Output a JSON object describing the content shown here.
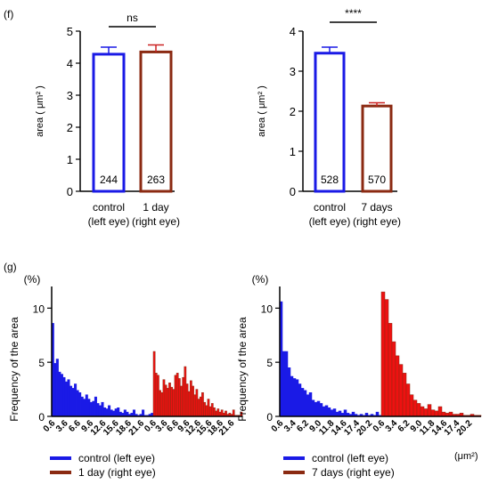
{
  "panels": {
    "f": "(f)",
    "g": "(g)"
  },
  "colors": {
    "control": "#1a1ae6",
    "treated_line": "#8b2a12",
    "treated_fill": "#ee1111",
    "errorbar_treated": "#cc2222"
  },
  "legend": {
    "left": [
      "control (left eye)",
      "1 day (right eye)"
    ],
    "right": [
      "control (left eye)",
      "7 days (right eye)"
    ]
  },
  "chart_data": [
    {
      "type": "bar",
      "ylabel": "area ( μm² )",
      "ylim": [
        0,
        5
      ],
      "yticks": [
        "0",
        "1",
        "2",
        "3",
        "4",
        "5"
      ],
      "categories": [
        "control\n(left eye)",
        "1 day\n(right eye)"
      ],
      "values": [
        4.28,
        4.35
      ],
      "errors": [
        0.22,
        0.22
      ],
      "data_labels": [
        "244",
        "263"
      ],
      "significance": "ns"
    },
    {
      "type": "bar",
      "ylabel": "area ( μm² )",
      "ylim": [
        0,
        4
      ],
      "yticks": [
        "0",
        "1",
        "2",
        "3",
        "4"
      ],
      "categories": [
        "control\n(left eye)",
        "7 days\n(right eye)"
      ],
      "values": [
        3.45,
        2.13
      ],
      "errors": [
        0.15,
        0.08
      ],
      "data_labels": [
        "528",
        "570"
      ],
      "significance": "****"
    },
    {
      "type": "bar",
      "unit_label": "(%)",
      "ylabel": "Frequency of the area",
      "ylim": [
        0,
        12
      ],
      "yticks": [
        "0",
        "5",
        "10"
      ],
      "x_ticks": [
        "0.6",
        "3.6",
        "6.6",
        "9.6",
        "12.6",
        "15.6",
        "18.6",
        "21.6"
      ],
      "series": [
        {
          "name": "control (left eye)",
          "values": [
            8.6,
            4.9,
            5.3,
            4.1,
            3.9,
            3.6,
            3.2,
            3.4,
            2.8,
            2.6,
            3.0,
            2.4,
            2.2,
            1.8,
            1.6,
            2.0,
            1.6,
            1.3,
            1.4,
            1.8,
            1.2,
            1.0,
            1.3,
            0.8,
            0.7,
            1.0,
            0.6,
            0.5,
            0.7,
            0.8,
            0.4,
            0.3,
            0.6,
            0.4,
            0.2,
            0.3,
            0.6,
            0.2,
            0.1,
            0.2,
            0.6,
            0.1,
            0.1,
            0.2,
            0.3
          ]
        },
        {
          "name": "1 day (right eye)",
          "values": [
            6.0,
            4.0,
            3.8,
            2.4,
            2.2,
            3.4,
            2.9,
            2.6,
            3.1,
            2.7,
            2.5,
            3.8,
            4.0,
            3.5,
            2.8,
            3.6,
            4.6,
            3.0,
            2.3,
            3.3,
            2.8,
            2.0,
            2.5,
            1.6,
            1.8,
            2.2,
            1.3,
            1.0,
            1.6,
            0.9,
            1.2,
            0.8,
            0.5,
            0.7,
            0.4,
            0.6,
            0.3,
            0.5,
            0.2,
            0.3,
            0.2,
            0.6,
            0.1,
            0.1,
            0.1,
            0.4
          ]
        }
      ]
    },
    {
      "type": "bar",
      "unit_label": "(%)",
      "ylabel": "Frequency of the area",
      "ylim": [
        0,
        12
      ],
      "yticks": [
        "0",
        "5",
        "10"
      ],
      "x_ticks": [
        "0.6",
        "3.4",
        "6.2",
        "9.0",
        "11.8",
        "14.6",
        "17.4",
        "20.2"
      ],
      "xlabel": "(μm²)",
      "series": [
        {
          "name": "control (left eye)",
          "values": [
            10.6,
            6.0,
            6.0,
            4.5,
            3.7,
            3.5,
            3.4,
            3.0,
            2.6,
            2.4,
            2.0,
            2.2,
            1.5,
            1.3,
            1.4,
            1.2,
            0.9,
            1.0,
            0.8,
            0.6,
            0.7,
            0.4,
            0.5,
            0.3,
            0.6,
            0.3,
            0.2,
            0.4,
            0.2,
            0.1,
            0.2,
            0.1,
            0.3,
            0.1,
            0.2,
            0.1,
            0.4,
            0.1
          ]
        },
        {
          "name": "7 days (right eye)",
          "values": [
            11.5,
            10.8,
            8.6,
            6.9,
            5.6,
            4.8,
            4.0,
            3.0,
            2.0,
            1.5,
            1.2,
            0.9,
            0.7,
            1.1,
            0.6,
            0.5,
            0.9,
            0.4,
            0.3,
            0.4,
            0.2,
            0.2,
            0.3,
            0.1,
            0.1,
            0.2,
            0.1,
            0.1
          ]
        }
      ]
    }
  ]
}
